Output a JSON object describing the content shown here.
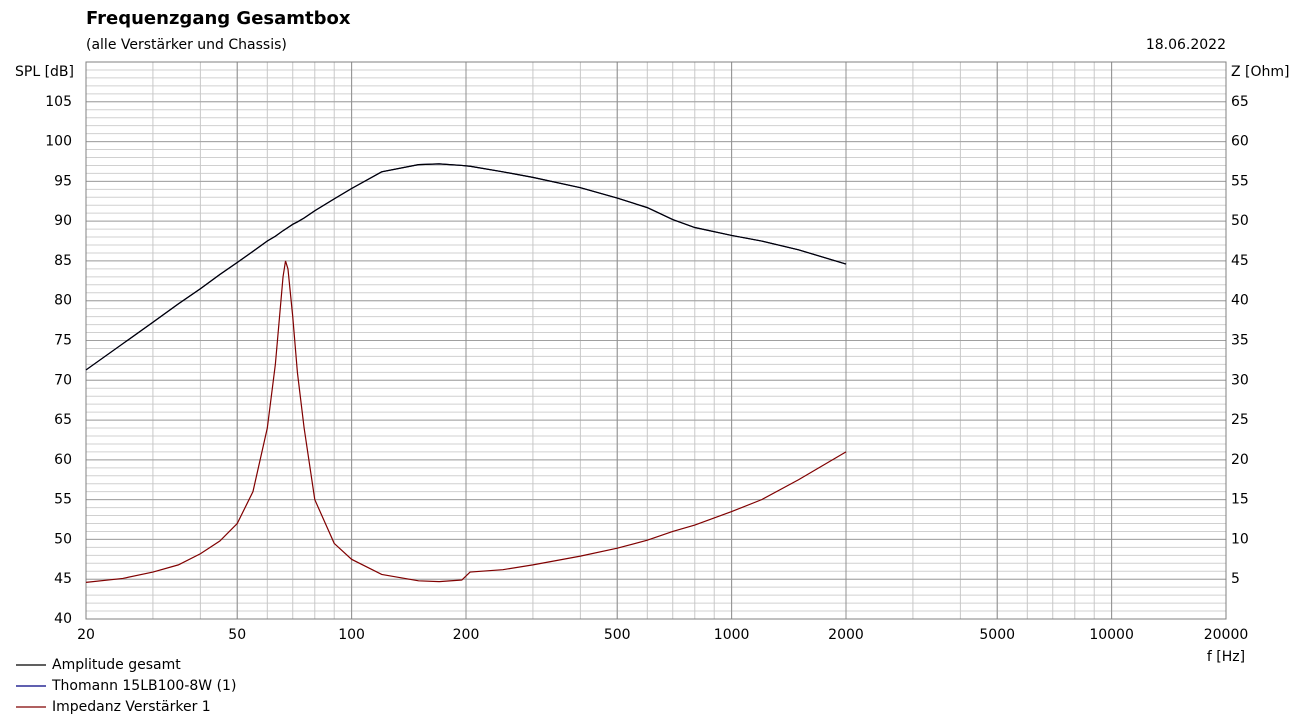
{
  "chart_data": {
    "type": "line",
    "title": "Frequenzgang Gesamtbox",
    "subtitle": "(alle Verstärker und Chassis)",
    "date": "18.06.2022",
    "y_label": "SPL [dB]",
    "y2_label": "Z [Ohm]",
    "x_label": "f [Hz]",
    "x_scale": "log",
    "grid": true,
    "minor_grid": true,
    "legend": "bottom-left",
    "xlim": [
      20,
      20000
    ],
    "xticks": [
      20,
      50,
      100,
      200,
      500,
      1000,
      2000,
      5000,
      10000,
      20000
    ],
    "ylim": [
      40,
      110
    ],
    "yticks": [
      40,
      45,
      50,
      55,
      60,
      65,
      70,
      75,
      80,
      85,
      90,
      95,
      100,
      105
    ],
    "y2lim": [
      0,
      70
    ],
    "y2ticks": [
      5,
      10,
      15,
      20,
      25,
      30,
      35,
      40,
      45,
      50,
      55,
      60,
      65
    ],
    "x": [
      20,
      25,
      30,
      35,
      40,
      45,
      50,
      55,
      60,
      63,
      66,
      67,
      68,
      70,
      72,
      75,
      80,
      90,
      100,
      120,
      150,
      170,
      195,
      205,
      250,
      300,
      400,
      500,
      600,
      700,
      800,
      1000,
      1200,
      1500,
      2000
    ],
    "series": [
      {
        "name": "Amplitude gesamt",
        "color": "#000000",
        "values": [
          71.3,
          74.6,
          77.3,
          79.6,
          81.5,
          83.3,
          84.8,
          86.2,
          87.5,
          88.1,
          88.8,
          89.0,
          89.2,
          89.6,
          89.9,
          90.4,
          91.3,
          92.8,
          94.1,
          96.2,
          97.1,
          97.2,
          97.0,
          96.9,
          96.2,
          95.5,
          94.2,
          92.9,
          91.7,
          90.2,
          89.2,
          88.2,
          87.5,
          86.4,
          84.6
        ]
      },
      {
        "name": "Thomann 15LB100-8W (1)",
        "color": "#000080",
        "values": [
          71.3,
          74.6,
          77.3,
          79.6,
          81.5,
          83.3,
          84.8,
          86.2,
          87.5,
          88.1,
          88.8,
          89.0,
          89.2,
          89.6,
          89.9,
          90.4,
          91.3,
          92.8,
          94.1,
          96.2,
          97.1,
          97.2,
          97.0,
          96.9,
          96.2,
          95.5,
          94.2,
          92.9,
          91.7,
          90.2,
          89.2,
          88.2,
          87.5,
          86.4,
          84.6
        ]
      },
      {
        "name": "Impedanz Verstärker 1",
        "color": "#800000",
        "axis": "y2",
        "values": [
          4.6,
          5.1,
          5.9,
          6.8,
          8.2,
          9.8,
          12,
          16,
          24,
          32,
          43,
          45,
          44,
          38,
          31,
          24,
          15,
          9.5,
          7.5,
          5.6,
          4.8,
          4.7,
          4.9,
          5.9,
          6.2,
          6.8,
          7.9,
          8.9,
          9.9,
          11,
          11.8,
          13.5,
          15,
          17.5,
          21
        ]
      }
    ]
  }
}
